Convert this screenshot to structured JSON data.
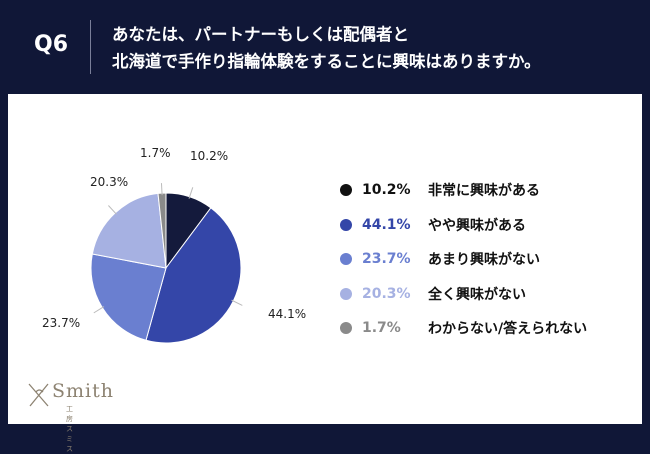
{
  "header": {
    "q": "Q6",
    "title_line1": "あなたは、パートナーもしくは配偶者と",
    "title_line2": "北海道で手作り指輪体験をすることに興味はありますか。"
  },
  "logo": {
    "name": "Smith",
    "sub": "工房スミス"
  },
  "chart_data": {
    "type": "pie",
    "title": "あなたは、パートナーもしくは配偶者と北海道で手作り指輪体験をすることに興味はありますか。",
    "start": "top",
    "direction": "clockwise",
    "slices": [
      {
        "label": "非常に興味がある",
        "value": 10.2,
        "text": "10.2%",
        "color": "#141a3c",
        "legend_color": "#111111"
      },
      {
        "label": "やや興味がある",
        "value": 44.1,
        "text": "44.1%",
        "color": "#3446a8",
        "legend_color": "#3446a8"
      },
      {
        "label": "あまり興味がない",
        "value": 23.7,
        "text": "23.7%",
        "color": "#6a7fd0",
        "legend_color": "#6a7fd0"
      },
      {
        "label": "全く興味がない",
        "value": 20.3,
        "text": "20.3%",
        "color": "#a6b1e2",
        "legend_color": "#a6b1e2"
      },
      {
        "label": "わからない/答えられない",
        "value": 1.7,
        "text": "1.7%",
        "color": "#8a8a8a",
        "legend_color": "#8a8a8a"
      }
    ],
    "legend_position": "right"
  }
}
